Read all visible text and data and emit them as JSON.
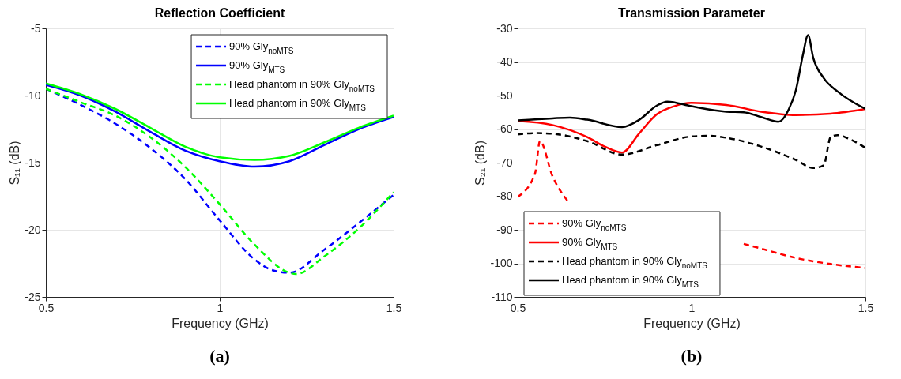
{
  "chart_data": [
    {
      "type": "line",
      "title": "Reflection Coefficient",
      "xlabel": "Frequency (GHz)",
      "ylabel": "S₁₁ (dB)",
      "xlim": [
        0.5,
        1.5
      ],
      "xticks": [
        0.5,
        1,
        1.5
      ],
      "ylim": [
        -25,
        -5
      ],
      "yticks": [
        -25,
        -20,
        -15,
        -10,
        -5
      ],
      "grid": true,
      "legend": "top right",
      "annotations": [
        "(a)"
      ],
      "series": [
        {
          "name": "90% Gly$_{noMTS}$",
          "color": "#0000ff",
          "line_style": "dashed",
          "x": [
            0.5,
            0.6,
            0.7,
            0.8,
            0.9,
            1.0,
            1.1,
            1.15,
            1.2,
            1.3,
            1.4,
            1.5
          ],
          "values": [
            -9.5,
            -10.7,
            -12.1,
            -13.9,
            -16.2,
            -19.3,
            -22.2,
            -23.0,
            -23.2,
            -21.5,
            -19.5,
            -17.4
          ]
        },
        {
          "name": "90% Gly$_{MTS}$",
          "color": "#0000ff",
          "line_style": "solid",
          "x": [
            0.5,
            0.6,
            0.7,
            0.8,
            0.9,
            1.0,
            1.1,
            1.2,
            1.3,
            1.4,
            1.5
          ],
          "values": [
            -9.2,
            -10.0,
            -11.2,
            -12.7,
            -14.1,
            -14.9,
            -15.3,
            -14.9,
            -13.7,
            -12.5,
            -11.6
          ]
        },
        {
          "name": "Head phantom in 90% Gly$_{noMTS}$",
          "color": "#00ff00",
          "line_style": "dashed",
          "x": [
            0.5,
            0.6,
            0.7,
            0.8,
            0.9,
            1.0,
            1.1,
            1.2,
            1.22,
            1.3,
            1.4,
            1.5
          ],
          "values": [
            -9.5,
            -10.5,
            -11.5,
            -13.1,
            -15.3,
            -18.1,
            -21.1,
            -23.2,
            -23.3,
            -22.0,
            -19.9,
            -17.2
          ]
        },
        {
          "name": "Head phantom in 90% Gly$_{MTS}$",
          "color": "#00ff00",
          "line_style": "solid",
          "x": [
            0.5,
            0.6,
            0.7,
            0.8,
            0.9,
            1.0,
            1.1,
            1.2,
            1.3,
            1.4,
            1.5
          ],
          "values": [
            -9.1,
            -9.9,
            -11.0,
            -12.4,
            -13.8,
            -14.6,
            -14.8,
            -14.5,
            -13.5,
            -12.4,
            -11.5
          ]
        }
      ]
    },
    {
      "type": "line",
      "title": "Transmission Parameter",
      "xlabel": "Frequency (GHz)",
      "ylabel": "S₂₁ (dB)",
      "xlim": [
        0.5,
        1.5
      ],
      "xticks": [
        0.5,
        1,
        1.5
      ],
      "ylim": [
        -110,
        -30
      ],
      "yticks": [
        -110,
        -100,
        -90,
        -80,
        -70,
        -60,
        -50,
        -40,
        -30
      ],
      "grid": true,
      "legend": "bottom left",
      "annotations": [
        "(b)"
      ],
      "series": [
        {
          "name": "90% Gly$_{noMTS}$",
          "color": "#ff0000",
          "line_style": "dashed",
          "x": [
            0.5,
            0.55,
            0.564,
            0.6,
            0.645,
            0.7,
            1.1,
            1.15,
            1.2,
            1.3,
            1.4,
            1.5
          ],
          "values": [
            -80.2,
            -73.2,
            -63.6,
            -74.0,
            -81.6,
            null,
            null,
            -94.2,
            -95.6,
            -98.4,
            -100.2,
            -101.4
          ]
        },
        {
          "name": "90% Gly$_{MTS}$",
          "color": "#ff0000",
          "line_style": "solid",
          "x": [
            0.5,
            0.6,
            0.7,
            0.75,
            0.8,
            0.85,
            0.9,
            0.95,
            1.0,
            1.1,
            1.2,
            1.3,
            1.4,
            1.5
          ],
          "values": [
            -57.6,
            -58.8,
            -62.4,
            -65.2,
            -67.0,
            -61.2,
            -55.6,
            -53.2,
            -52.2,
            -52.8,
            -54.8,
            -55.8,
            -55.4,
            -54.0
          ]
        },
        {
          "name": "Head phantom in 90% Gly$_{noMTS}$",
          "color": "#000000",
          "line_style": "dashed",
          "x": [
            0.5,
            0.55,
            0.6,
            0.7,
            0.8,
            0.9,
            1.0,
            1.05,
            1.1,
            1.2,
            1.3,
            1.35,
            1.38,
            1.4,
            1.42,
            1.45,
            1.5
          ],
          "values": [
            -61.6,
            -61.2,
            -61.4,
            -63.6,
            -67.6,
            -64.8,
            -62.2,
            -62.0,
            -62.6,
            -65.2,
            -69.2,
            -71.6,
            -70.8,
            -62.4,
            -61.8,
            -62.8,
            -65.6
          ]
        },
        {
          "name": "Head phantom in 90% Gly$_{MTS}$",
          "color": "#000000",
          "line_style": "solid",
          "x": [
            0.5,
            0.6,
            0.65,
            0.7,
            0.8,
            0.85,
            0.9,
            0.93,
            1.0,
            1.1,
            1.15,
            1.2,
            1.25,
            1.28,
            1.3,
            1.32,
            1.335,
            1.35,
            1.38,
            1.42,
            1.5
          ],
          "values": [
            -57.4,
            -56.8,
            -56.6,
            -57.2,
            -59.4,
            -57.2,
            -53.0,
            -51.8,
            -53.2,
            -54.8,
            -55.0,
            -56.4,
            -57.8,
            -54.0,
            -48.4,
            -38.0,
            -32.0,
            -38.8,
            -44.8,
            -48.8,
            -54.0
          ]
        }
      ]
    }
  ]
}
